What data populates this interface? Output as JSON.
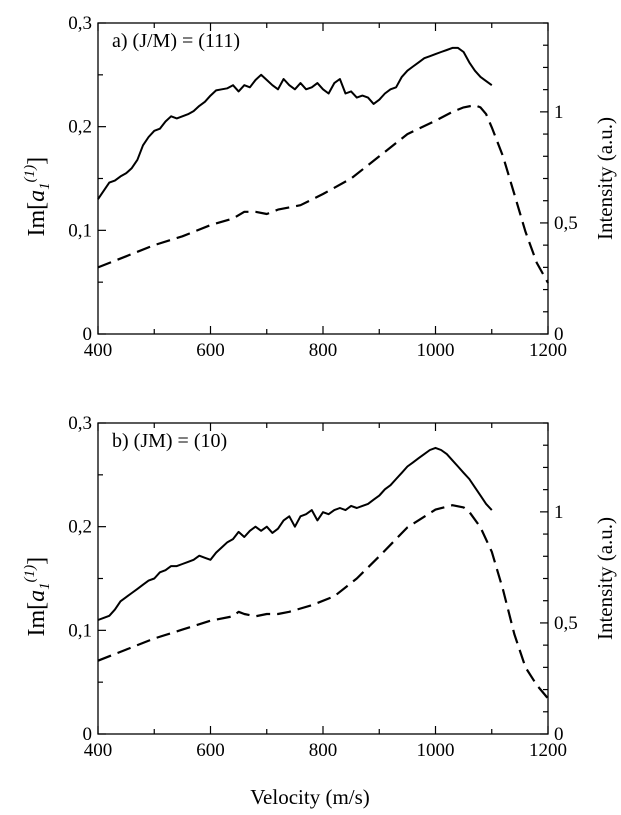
{
  "chart_data": [
    {
      "type": "line",
      "panel_label": "a)  (J/M) = (111)",
      "xlabel": "Velocity (m/s)",
      "ylabel_left": "Im[a_1^(1)]",
      "ylabel_left_parts": {
        "prefix": "Im",
        "base": "a",
        "subscript": "1",
        "superscript": "(1)"
      },
      "ylabel_right": "Intensity (a.u.)",
      "xlim": [
        400,
        1200
      ],
      "ylim_left": [
        0,
        0.3
      ],
      "ylim_right": [
        0,
        1.4
      ],
      "x_ticks": [
        {
          "value": 400,
          "label": "400"
        },
        {
          "value": 600,
          "label": "600"
        },
        {
          "value": 800,
          "label": "800"
        },
        {
          "value": 1000,
          "label": "1000"
        },
        {
          "value": 1200,
          "label": "1200"
        }
      ],
      "y_left_ticks": [
        {
          "value": 0,
          "label": "0"
        },
        {
          "value": 0.1,
          "label": "0,1"
        },
        {
          "value": 0.2,
          "label": "0,2"
        },
        {
          "value": 0.3,
          "label": "0,3"
        }
      ],
      "y_right_ticks": [
        {
          "value": 0,
          "label": "0"
        },
        {
          "value": 0.5,
          "label": "0,5"
        },
        {
          "value": 1,
          "label": "1"
        }
      ],
      "series": [
        {
          "style": "solid",
          "axis": "left",
          "x": [
            400,
            410,
            420,
            430,
            440,
            450,
            460,
            470,
            480,
            490,
            500,
            510,
            520,
            530,
            540,
            550,
            560,
            570,
            580,
            590,
            600,
            610,
            620,
            630,
            640,
            650,
            660,
            670,
            680,
            690,
            700,
            710,
            720,
            730,
            740,
            750,
            760,
            770,
            780,
            790,
            800,
            810,
            820,
            830,
            840,
            850,
            860,
            870,
            880,
            890,
            900,
            910,
            920,
            930,
            940,
            950,
            960,
            970,
            980,
            990,
            1000,
            1010,
            1020,
            1030,
            1040,
            1050,
            1060,
            1070,
            1080,
            1090,
            1100
          ],
          "y": [
            0.13,
            0.138,
            0.146,
            0.148,
            0.152,
            0.155,
            0.16,
            0.168,
            0.182,
            0.19,
            0.196,
            0.198,
            0.205,
            0.21,
            0.208,
            0.21,
            0.212,
            0.215,
            0.22,
            0.224,
            0.23,
            0.235,
            0.236,
            0.237,
            0.24,
            0.234,
            0.24,
            0.238,
            0.245,
            0.25,
            0.245,
            0.24,
            0.236,
            0.246,
            0.24,
            0.236,
            0.242,
            0.236,
            0.238,
            0.242,
            0.236,
            0.232,
            0.242,
            0.246,
            0.232,
            0.234,
            0.228,
            0.23,
            0.228,
            0.222,
            0.226,
            0.232,
            0.236,
            0.238,
            0.248,
            0.254,
            0.258,
            0.262,
            0.266,
            0.268,
            0.27,
            0.272,
            0.274,
            0.276,
            0.276,
            0.272,
            0.262,
            0.254,
            0.248,
            0.244,
            0.24
          ]
        },
        {
          "style": "dashed",
          "axis": "right",
          "x": [
            400,
            450,
            500,
            550,
            600,
            640,
            660,
            680,
            700,
            720,
            740,
            760,
            800,
            850,
            900,
            950,
            1000,
            1030,
            1050,
            1070,
            1080,
            1090,
            1100,
            1120,
            1140,
            1160,
            1180,
            1200
          ],
          "y": [
            0.3,
            0.35,
            0.4,
            0.44,
            0.49,
            0.52,
            0.55,
            0.55,
            0.54,
            0.56,
            0.57,
            0.58,
            0.63,
            0.7,
            0.8,
            0.9,
            0.96,
            1.0,
            1.02,
            1.03,
            1.02,
            0.99,
            0.93,
            0.8,
            0.63,
            0.46,
            0.32,
            0.23
          ]
        }
      ]
    },
    {
      "type": "line",
      "panel_label": "b)  (JM) = (10)",
      "xlabel": "Velocity (m/s)",
      "ylabel_left": "Im[a_1^(1)]",
      "ylabel_left_parts": {
        "prefix": "Im",
        "base": "a",
        "subscript": "1",
        "superscript": "(1)"
      },
      "ylabel_right": "Intensity (a.u.)",
      "xlim": [
        400,
        1200
      ],
      "ylim_left": [
        0,
        0.3
      ],
      "ylim_right": [
        0,
        1.4
      ],
      "x_ticks": [
        {
          "value": 400,
          "label": "400"
        },
        {
          "value": 600,
          "label": "600"
        },
        {
          "value": 800,
          "label": "800"
        },
        {
          "value": 1000,
          "label": "1000"
        },
        {
          "value": 1200,
          "label": "1200"
        }
      ],
      "y_left_ticks": [
        {
          "value": 0,
          "label": "0"
        },
        {
          "value": 0.1,
          "label": "0,1"
        },
        {
          "value": 0.2,
          "label": "0,2"
        },
        {
          "value": 0.3,
          "label": "0,3"
        }
      ],
      "y_right_ticks": [
        {
          "value": 0,
          "label": "0"
        },
        {
          "value": 0.5,
          "label": "0,5"
        },
        {
          "value": 1,
          "label": "1"
        }
      ],
      "series": [
        {
          "style": "solid",
          "axis": "left",
          "x": [
            400,
            410,
            420,
            430,
            440,
            450,
            460,
            470,
            480,
            490,
            500,
            510,
            520,
            530,
            540,
            550,
            560,
            570,
            580,
            590,
            600,
            610,
            620,
            630,
            640,
            650,
            660,
            670,
            680,
            690,
            700,
            710,
            720,
            730,
            740,
            750,
            760,
            770,
            780,
            790,
            800,
            810,
            820,
            830,
            840,
            850,
            860,
            870,
            880,
            890,
            900,
            910,
            920,
            930,
            940,
            950,
            960,
            970,
            980,
            990,
            1000,
            1010,
            1020,
            1030,
            1040,
            1050,
            1060,
            1070,
            1080,
            1090,
            1100
          ],
          "y": [
            0.11,
            0.112,
            0.114,
            0.12,
            0.128,
            0.132,
            0.136,
            0.14,
            0.144,
            0.148,
            0.15,
            0.156,
            0.158,
            0.162,
            0.162,
            0.164,
            0.166,
            0.168,
            0.172,
            0.17,
            0.168,
            0.175,
            0.18,
            0.185,
            0.188,
            0.195,
            0.19,
            0.196,
            0.2,
            0.196,
            0.2,
            0.194,
            0.198,
            0.206,
            0.21,
            0.2,
            0.21,
            0.212,
            0.216,
            0.206,
            0.214,
            0.212,
            0.216,
            0.218,
            0.216,
            0.22,
            0.218,
            0.22,
            0.222,
            0.226,
            0.23,
            0.236,
            0.24,
            0.246,
            0.252,
            0.258,
            0.262,
            0.266,
            0.27,
            0.274,
            0.276,
            0.274,
            0.27,
            0.264,
            0.258,
            0.252,
            0.246,
            0.238,
            0.23,
            0.222,
            0.216
          ]
        },
        {
          "style": "dashed",
          "axis": "right",
          "x": [
            400,
            450,
            500,
            550,
            600,
            640,
            650,
            660,
            680,
            700,
            720,
            740,
            780,
            820,
            860,
            900,
            950,
            1000,
            1030,
            1050,
            1060,
            1080,
            1100,
            1120,
            1140,
            1160,
            1180,
            1200
          ],
          "y": [
            0.33,
            0.38,
            0.43,
            0.47,
            0.51,
            0.53,
            0.55,
            0.54,
            0.53,
            0.54,
            0.54,
            0.55,
            0.58,
            0.62,
            0.7,
            0.8,
            0.93,
            1.01,
            1.03,
            1.02,
            1.0,
            0.93,
            0.82,
            0.65,
            0.45,
            0.3,
            0.22,
            0.16
          ]
        }
      ]
    }
  ]
}
